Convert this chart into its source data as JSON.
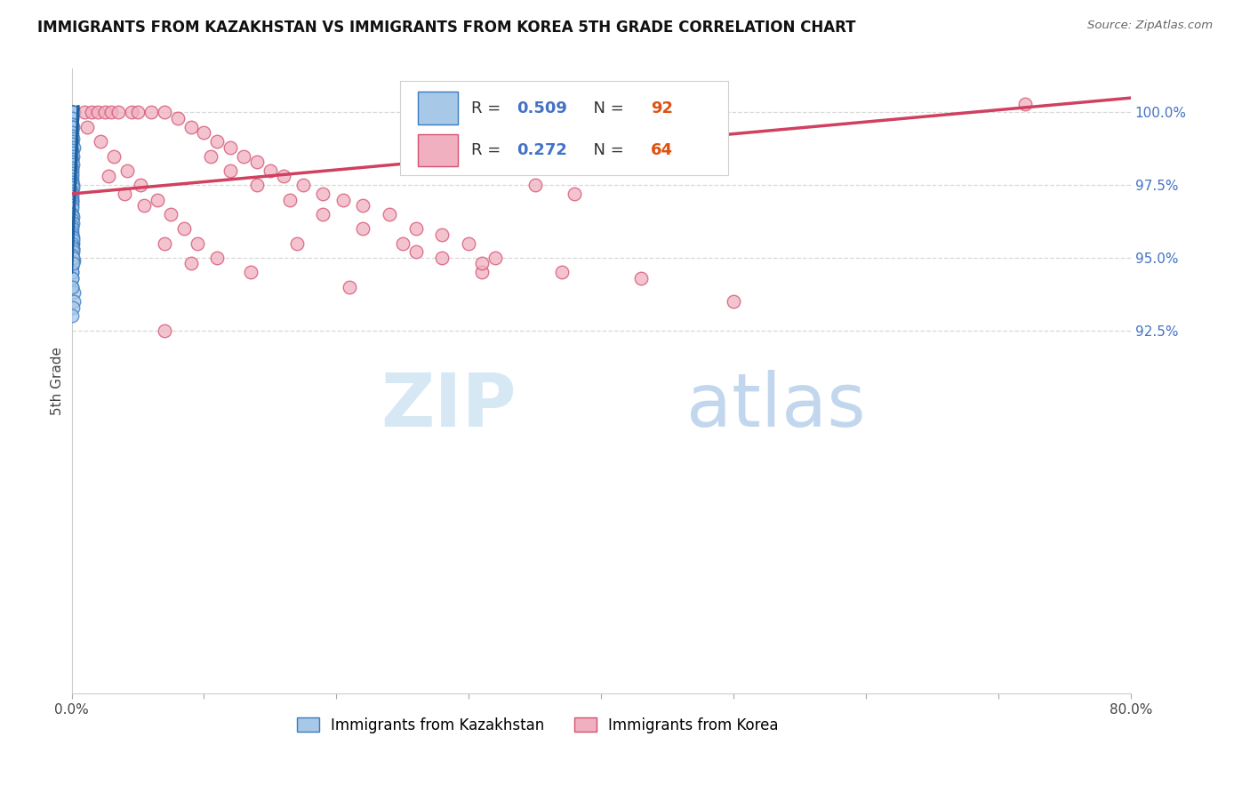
{
  "title": "IMMIGRANTS FROM KAZAKHSTAN VS IMMIGRANTS FROM KOREA 5TH GRADE CORRELATION CHART",
  "source": "Source: ZipAtlas.com",
  "ylabel": "5th Grade",
  "R1": 0.509,
  "N1": 92,
  "R2": 0.272,
  "N2": 64,
  "blue_fill": "#a8c8e8",
  "blue_edge": "#3a7abf",
  "pink_fill": "#f0b0c0",
  "pink_edge": "#d45070",
  "blue_line": "#2060a0",
  "pink_line": "#d04060",
  "legend_label1": "Immigrants from Kazakhstan",
  "legend_label2": "Immigrants from Korea",
  "background_color": "#ffffff",
  "grid_color": "#d8d8d8",
  "right_tick_color": "#4472c4",
  "ylim_min": 80.0,
  "ylim_max": 101.5,
  "xlim_min": 0.0,
  "xlim_max": 80.0,
  "yticks": [
    92.5,
    95.0,
    97.5,
    100.0
  ],
  "xticks": [
    0,
    10,
    20,
    30,
    40,
    50,
    60,
    70,
    80
  ],
  "kaz_x": [
    0.0,
    0.0,
    0.0,
    0.0,
    0.0,
    0.0,
    0.0,
    0.0,
    0.0,
    0.0,
    0.0,
    0.0,
    0.0,
    0.0,
    0.0,
    0.0,
    0.0,
    0.0,
    0.0,
    0.0,
    0.0,
    0.0,
    0.0,
    0.0,
    0.0,
    0.0,
    0.0,
    0.0,
    0.0,
    0.0,
    0.0,
    0.0,
    0.0,
    0.0,
    0.0,
    0.0,
    0.0,
    0.0,
    0.0,
    0.0,
    0.0,
    0.0,
    0.0,
    0.0,
    0.0,
    0.0,
    0.0,
    0.0,
    0.0,
    0.0,
    0.0,
    0.0,
    0.0,
    0.0,
    0.0,
    0.0,
    0.0,
    0.0,
    0.0,
    0.0,
    0.0,
    0.0,
    0.0,
    0.0,
    0.0,
    0.0,
    0.0,
    0.0,
    0.0,
    0.0,
    0.0,
    0.0,
    0.0,
    0.0,
    0.0,
    0.0,
    0.0,
    0.0,
    0.0,
    0.0,
    0.0,
    0.0,
    0.0,
    0.0,
    0.0,
    0.0,
    0.0,
    0.0,
    0.0,
    0.0,
    0.0,
    0.0
  ],
  "kaz_y": [
    100.0,
    100.0,
    100.0,
    100.0,
    100.0,
    100.0,
    100.0,
    100.0,
    100.0,
    100.0,
    100.0,
    100.0,
    99.8,
    99.6,
    99.5,
    99.5,
    99.3,
    99.2,
    99.1,
    99.0,
    98.9,
    98.8,
    98.7,
    98.6,
    98.5,
    98.4,
    98.3,
    98.2,
    98.1,
    98.0,
    97.9,
    97.8,
    97.7,
    97.6,
    97.5,
    97.5,
    97.4,
    97.3,
    97.2,
    97.1,
    97.0,
    97.0,
    96.9,
    96.8,
    96.7,
    96.5,
    96.5,
    96.4,
    96.3,
    96.2,
    96.1,
    96.0,
    95.9,
    95.8,
    95.7,
    95.5,
    95.4,
    95.3,
    95.2,
    95.0,
    94.9,
    94.8,
    94.7,
    94.5,
    94.3,
    94.0,
    93.8,
    93.5,
    93.3,
    93.0,
    95.5,
    95.5,
    95.5,
    95.5,
    95.3,
    95.2,
    95.1,
    95.0,
    94.8,
    94.5,
    94.3,
    94.0,
    95.7,
    95.7,
    95.6,
    95.5,
    95.4,
    95.3,
    95.2,
    95.1,
    95.0,
    94.8
  ],
  "korea_x": [
    1.0,
    1.5,
    2.0,
    2.5,
    3.0,
    3.5,
    4.5,
    5.0,
    6.0,
    7.0,
    8.0,
    9.0,
    10.0,
    11.0,
    12.0,
    13.0,
    14.0,
    15.0,
    16.0,
    17.5,
    19.0,
    20.5,
    22.0,
    24.0,
    26.0,
    28.0,
    30.0,
    32.0,
    35.0,
    38.0,
    1.2,
    2.2,
    3.2,
    4.2,
    5.2,
    6.5,
    7.5,
    8.5,
    9.5,
    10.5,
    12.0,
    14.0,
    16.5,
    19.0,
    22.0,
    25.0,
    28.0,
    31.0,
    2.8,
    4.0,
    5.5,
    7.0,
    9.0,
    11.0,
    13.5,
    17.0,
    21.0,
    26.0,
    31.0,
    37.0,
    43.0,
    50.0,
    72.0,
    7.0
  ],
  "korea_y": [
    100.0,
    100.0,
    100.0,
    100.0,
    100.0,
    100.0,
    100.0,
    100.0,
    100.0,
    100.0,
    99.8,
    99.5,
    99.3,
    99.0,
    98.8,
    98.5,
    98.3,
    98.0,
    97.8,
    97.5,
    97.2,
    97.0,
    96.8,
    96.5,
    96.0,
    95.8,
    95.5,
    95.0,
    97.5,
    97.2,
    99.5,
    99.0,
    98.5,
    98.0,
    97.5,
    97.0,
    96.5,
    96.0,
    95.5,
    98.5,
    98.0,
    97.5,
    97.0,
    96.5,
    96.0,
    95.5,
    95.0,
    94.5,
    97.8,
    97.2,
    96.8,
    95.5,
    94.8,
    95.0,
    94.5,
    95.5,
    94.0,
    95.2,
    94.8,
    94.5,
    94.3,
    93.5,
    100.3,
    92.5
  ]
}
